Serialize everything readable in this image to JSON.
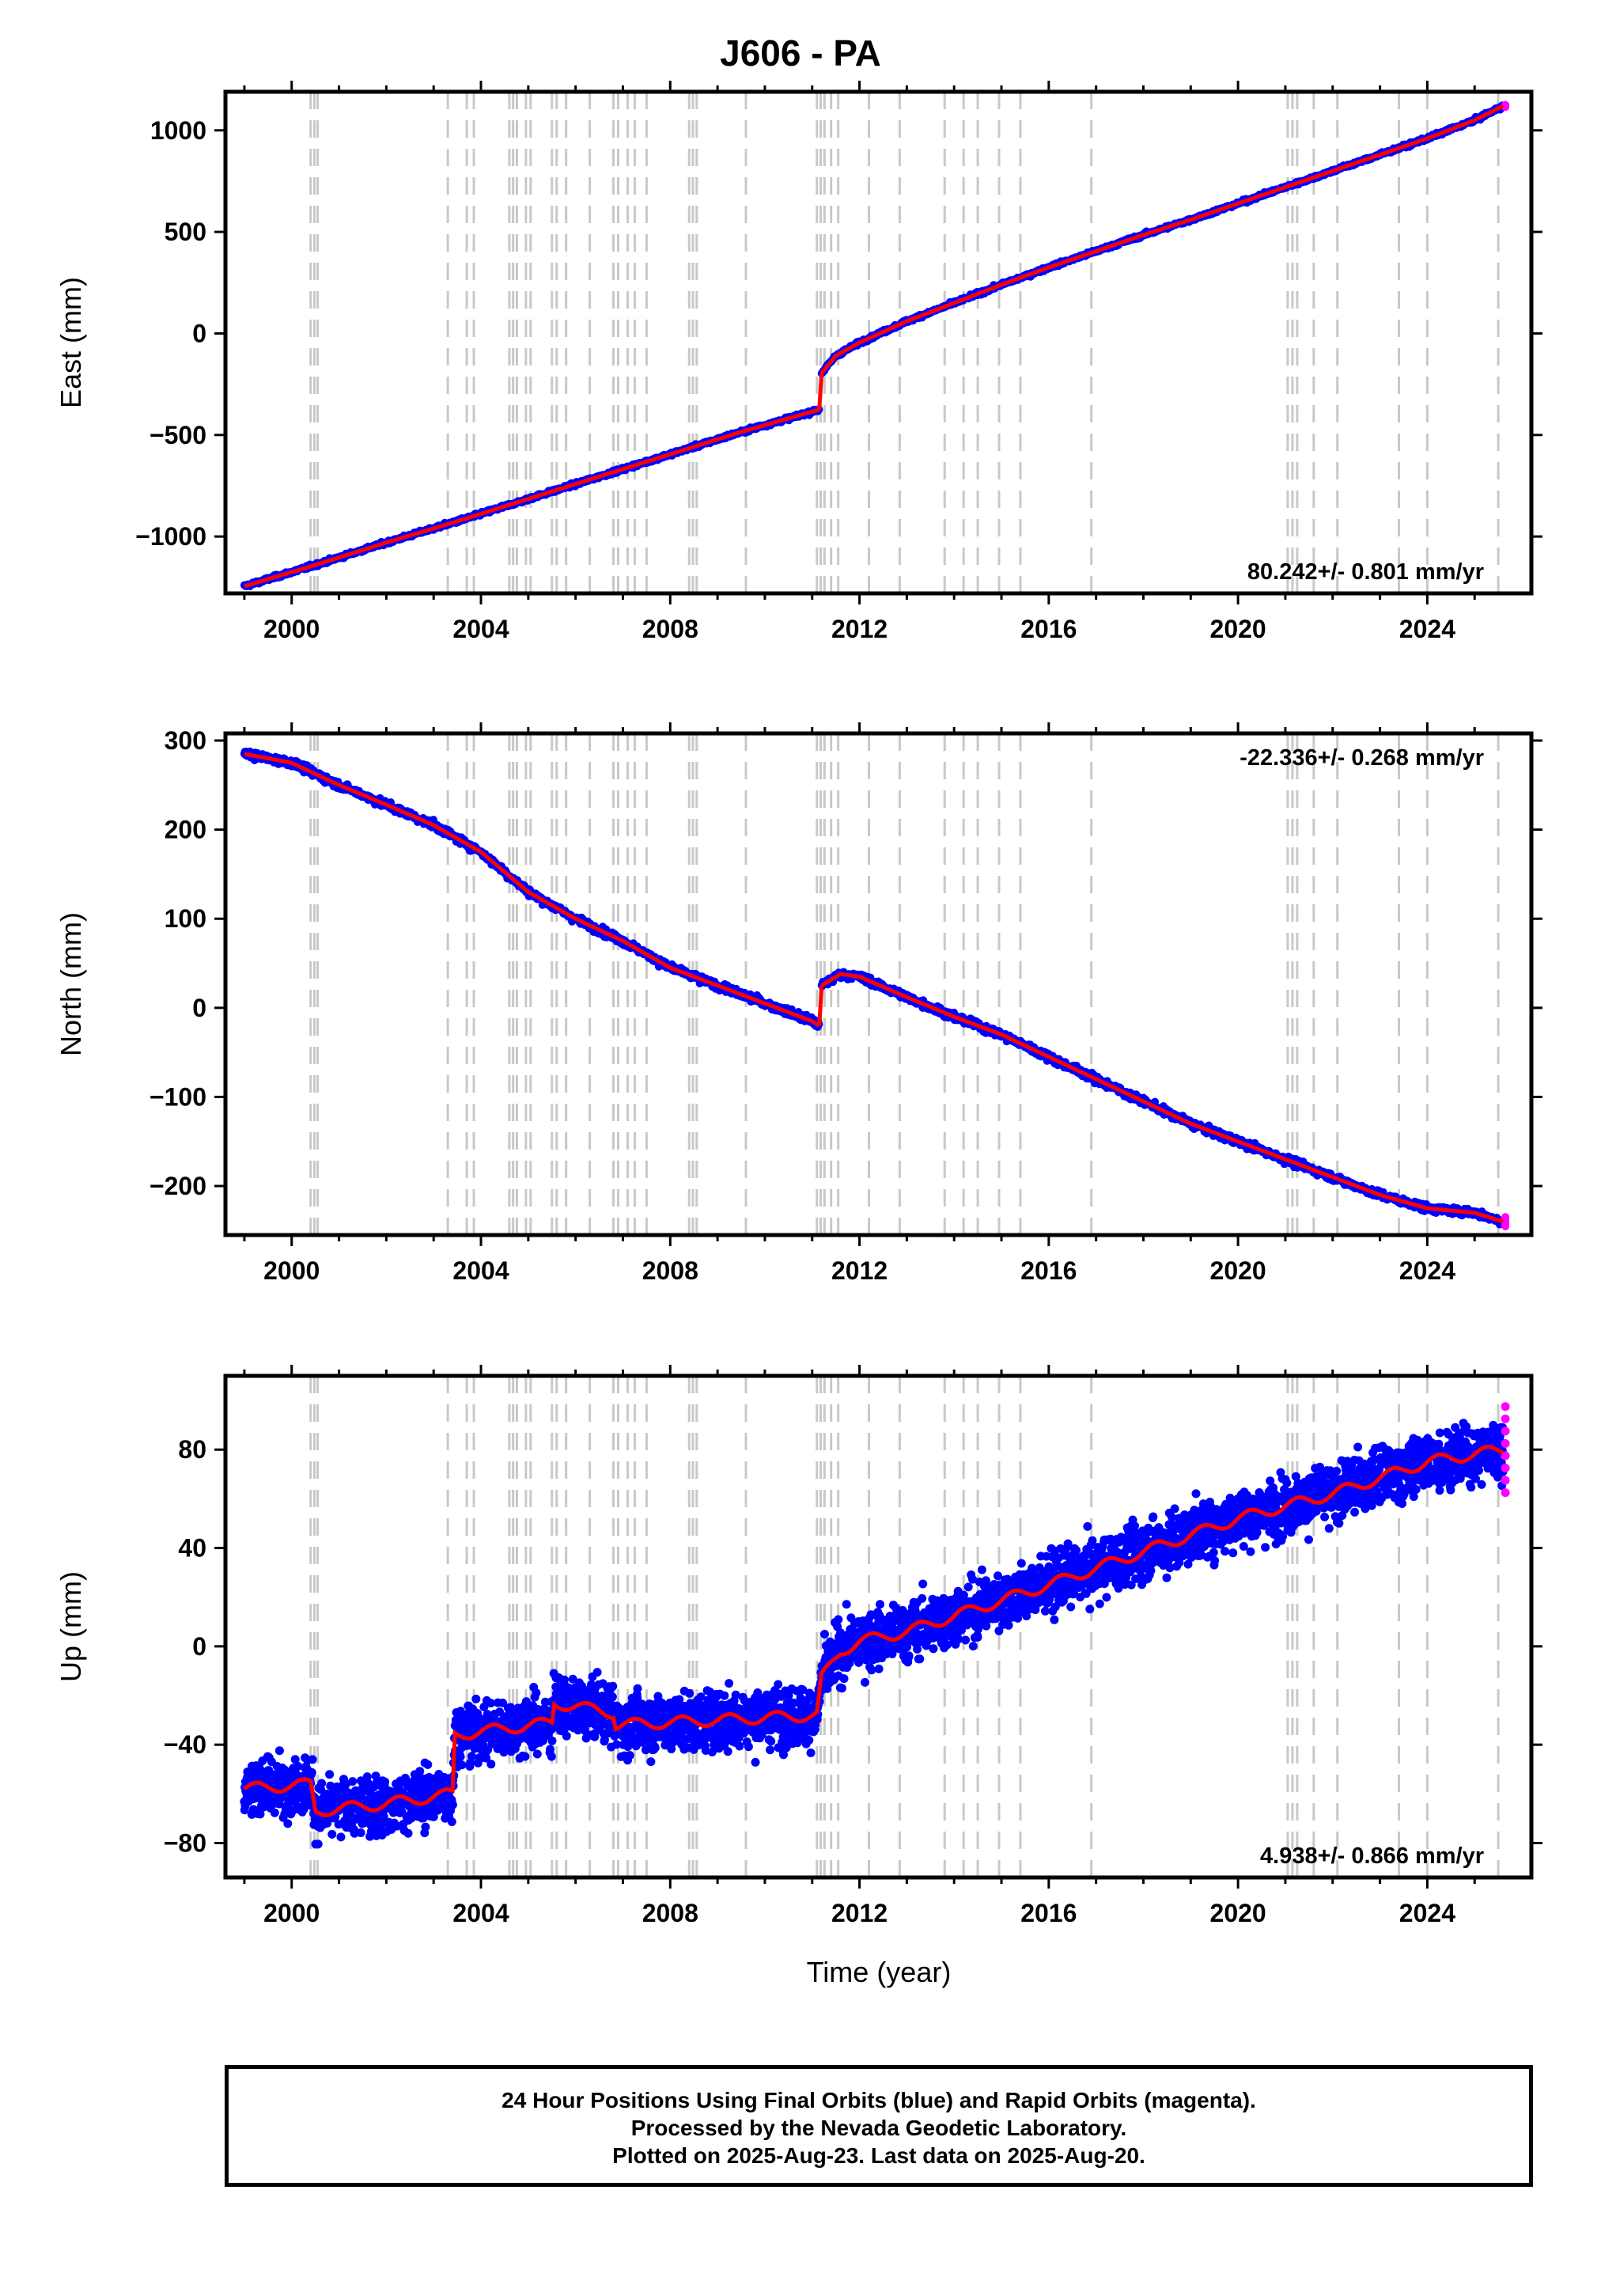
{
  "title": "J606 - PA",
  "xlabel": "Time (year)",
  "footer": {
    "line1": "24 Hour Positions Using Final Orbits (blue) and Rapid Orbits (magenta).",
    "line2": "Processed by the Nevada Geodetic Laboratory.",
    "line3": "Plotted on 2025-Aug-23. Last data on 2025-Aug-20."
  },
  "colors": {
    "final_orbits": "#0000ff",
    "rapid_orbits": "#ff00ff",
    "model": "#ff0000",
    "event_lines": "#c8c8c8"
  },
  "chart_data": [
    {
      "type": "scatter",
      "ylabel": "East (mm)",
      "rate": "80.242+/- 0.801 mm/yr",
      "rate_position": "bottom-right",
      "xlim": [
        1998.6,
        2026.2
      ],
      "ylim": [
        -1280,
        1190
      ],
      "x_ticks": [
        2000,
        2004,
        2008,
        2012,
        2016,
        2020,
        2024
      ],
      "x_tick_labels": [
        "2000",
        "2004",
        "2008",
        "2012",
        "2016",
        "2020",
        "2024"
      ],
      "y_ticks": [
        -1000,
        -500,
        0,
        500,
        1000
      ],
      "y_tick_labels": [
        "−1000",
        "−500",
        "0",
        "500",
        "1000"
      ],
      "series": [
        {
          "x": [
            1999.0,
            2000.5,
            2002.0,
            2003.5,
            2005.0,
            2006.5,
            2008.0,
            2009.5,
            2011.15
          ],
          "values": [
            -1245,
            -1140,
            -1030,
            -925,
            -815,
            -705,
            -595,
            -485,
            -375
          ]
        },
        {
          "x": [
            2011.2,
            2011.5,
            2012.0,
            2013.0,
            2014.0,
            2015.0,
            2016.0,
            2017.0,
            2018.0,
            2019.0,
            2020.0,
            2021.0,
            2022.0,
            2023.0,
            2024.0,
            2025.0,
            2025.6
          ],
          "values": [
            -195,
            -110,
            -45,
            60,
            150,
            240,
            325,
            405,
            485,
            560,
            640,
            720,
            800,
            880,
            960,
            1050,
            1120
          ]
        }
      ]
    },
    {
      "type": "scatter",
      "ylabel": "North (mm)",
      "rate": "-22.336+/- 0.268 mm/yr",
      "rate_position": "top-right",
      "xlim": [
        1998.6,
        2026.2
      ],
      "ylim": [
        -255,
        308
      ],
      "x_ticks": [
        2000,
        2004,
        2008,
        2012,
        2016,
        2020,
        2024
      ],
      "x_tick_labels": [
        "2000",
        "2004",
        "2008",
        "2012",
        "2016",
        "2020",
        "2024"
      ],
      "y_ticks": [
        -200,
        -100,
        0,
        100,
        200,
        300
      ],
      "y_tick_labels": [
        "−200",
        "−100",
        "0",
        "100",
        "200",
        "300"
      ],
      "series": [
        {
          "x": [
            1999.0,
            2000.0,
            2001.0,
            2002.0,
            2003.0,
            2004.0,
            2005.0,
            2006.0,
            2007.0,
            2008.0,
            2009.0,
            2010.0,
            2011.0,
            2011.15
          ],
          "values": [
            285,
            275,
            250,
            228,
            205,
            175,
            130,
            100,
            75,
            45,
            25,
            5,
            -15,
            -20
          ]
        },
        {
          "x": [
            2011.2,
            2011.6,
            2012.0,
            2013.0,
            2014.0,
            2015.0,
            2016.0,
            2017.0,
            2018.0,
            2019.0,
            2020.0,
            2021.0,
            2022.0,
            2023.0,
            2024.0,
            2025.0,
            2025.6
          ],
          "values": [
            25,
            38,
            35,
            12,
            -10,
            -30,
            -55,
            -80,
            -105,
            -130,
            -150,
            -170,
            -190,
            -210,
            -225,
            -230,
            -240
          ]
        }
      ]
    },
    {
      "type": "scatter",
      "ylabel": "Up (mm)",
      "rate": "4.938+/- 0.866 mm/yr",
      "rate_position": "bottom-right",
      "xlim": [
        1998.6,
        2026.2
      ],
      "ylim": [
        -94,
        110
      ],
      "x_ticks": [
        2000,
        2004,
        2008,
        2012,
        2016,
        2020,
        2024
      ],
      "x_tick_labels": [
        "2000",
        "2004",
        "2008",
        "2012",
        "2016",
        "2020",
        "2024"
      ],
      "y_ticks": [
        -80,
        -40,
        0,
        40,
        80
      ],
      "y_tick_labels": [
        "−80",
        "−40",
        "0",
        "40",
        "80"
      ],
      "series": [
        {
          "x": [
            1999.0,
            2000.4,
            2000.5,
            2002.0,
            2003.4,
            2003.45,
            2005.5,
            2005.55,
            2006.8,
            2006.85,
            2009.0,
            2011.1,
            2011.2,
            2011.6,
            2012.0,
            2013.0,
            2016.0,
            2020.0,
            2022.0,
            2024.0,
            2025.6
          ],
          "values": [
            -58,
            -56,
            -67,
            -64,
            -60,
            -36,
            -31,
            -23,
            -27,
            -32,
            -30,
            -28,
            -13,
            -2,
            2,
            6,
            25,
            52,
            62,
            75,
            80
          ]
        }
      ]
    }
  ],
  "event_lines": [
    2000.4,
    2000.48,
    2000.55,
    2003.3,
    2003.7,
    2003.85,
    2004.6,
    2004.68,
    2004.76,
    2004.95,
    2005.05,
    2005.5,
    2005.6,
    2005.8,
    2006.3,
    2006.8,
    2006.9,
    2007.1,
    2007.25,
    2007.5,
    2008.4,
    2008.48,
    2008.56,
    2009.6,
    2011.1,
    2011.18,
    2011.26,
    2011.4,
    2011.55,
    2012.2,
    2012.85,
    2013.8,
    2014.2,
    2014.5,
    2014.95,
    2015.4,
    2016.9,
    2021.05,
    2021.15,
    2021.25,
    2021.6,
    2022.1,
    2023.4,
    2024.0,
    2025.5
  ]
}
